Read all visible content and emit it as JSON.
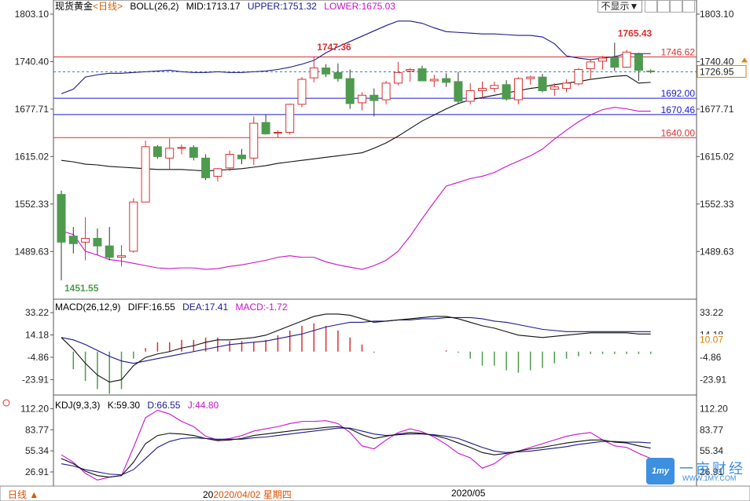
{
  "chart_data": {
    "type": "candlestick",
    "instrument": "现货黄金",
    "period": "日线",
    "x_labels": [
      {
        "text": "20",
        "highlight": "2020/04/02 星期四",
        "index": 13
      },
      {
        "text": "2020/05",
        "index": 35
      }
    ],
    "candles": [
      [
        1565,
        1570,
        1451.55,
        1502
      ],
      [
        1510,
        1522,
        1487,
        1500
      ],
      [
        1502,
        1535,
        1478,
        1507
      ],
      [
        1507,
        1520,
        1485,
        1497
      ],
      [
        1497,
        1522,
        1478,
        1482
      ],
      [
        1482,
        1498,
        1470,
        1484
      ],
      [
        1490,
        1560,
        1488,
        1555
      ],
      [
        1555,
        1636,
        1555,
        1628
      ],
      [
        1628,
        1630,
        1612,
        1615
      ],
      [
        1613,
        1639,
        1598,
        1626
      ],
      [
        1626,
        1631,
        1618,
        1627
      ],
      [
        1627,
        1630,
        1610,
        1614
      ],
      [
        1613,
        1618,
        1584,
        1587
      ],
      [
        1589,
        1600,
        1582,
        1599
      ],
      [
        1600,
        1623,
        1596,
        1618
      ],
      [
        1617,
        1625,
        1605,
        1612
      ],
      [
        1613,
        1668,
        1604,
        1659
      ],
      [
        1660,
        1670,
        1644,
        1645
      ],
      [
        1646,
        1650,
        1640,
        1647
      ],
      [
        1647,
        1685,
        1644,
        1684
      ],
      [
        1684,
        1720,
        1680,
        1717
      ],
      [
        1719,
        1747.36,
        1713,
        1732
      ],
      [
        1732,
        1737,
        1720,
        1724
      ],
      [
        1726,
        1738,
        1714,
        1718
      ],
      [
        1718,
        1730,
        1678,
        1685
      ],
      [
        1686,
        1700,
        1676,
        1696
      ],
      [
        1696,
        1705,
        1668,
        1689
      ],
      [
        1690,
        1715,
        1684,
        1712
      ],
      [
        1712,
        1740,
        1709,
        1726
      ],
      [
        1728,
        1732,
        1714,
        1730
      ],
      [
        1731,
        1735,
        1715,
        1715
      ],
      [
        1715,
        1723,
        1707,
        1717
      ],
      [
        1718,
        1725,
        1707,
        1713
      ],
      [
        1714,
        1727,
        1685,
        1688
      ],
      [
        1688,
        1712,
        1684,
        1702
      ],
      [
        1702,
        1714,
        1692,
        1705
      ],
      [
        1705,
        1714,
        1700,
        1709
      ],
      [
        1710,
        1716,
        1689,
        1691
      ],
      [
        1690,
        1720,
        1684,
        1718
      ],
      [
        1718,
        1722,
        1710,
        1720
      ],
      [
        1720,
        1724,
        1700,
        1702
      ],
      [
        1704,
        1712,
        1695,
        1707
      ],
      [
        1705,
        1717,
        1700,
        1712
      ],
      [
        1711,
        1732,
        1709,
        1730
      ],
      [
        1731,
        1743,
        1718,
        1740
      ],
      [
        1741,
        1748,
        1730,
        1745
      ],
      [
        1746,
        1765.43,
        1728,
        1733
      ],
      [
        1733,
        1756,
        1732,
        1753
      ],
      [
        1750,
        1752,
        1715,
        1729
      ],
      [
        1728,
        1730,
        1725,
        1727
      ]
    ],
    "boll": {
      "name": "BOLL(26,2)",
      "mid_label": "MID:1713.17",
      "upper_label": "UPPER:1751.32",
      "lower_label": "LOWER:1675.03",
      "mid": [
        1610,
        1608,
        1605,
        1604,
        1602,
        1601,
        1600,
        1599,
        1598,
        1598,
        1598,
        1597,
        1596,
        1597,
        1598,
        1599,
        1601,
        1603,
        1606,
        1608,
        1610,
        1612,
        1614,
        1616,
        1618,
        1620,
        1626,
        1633,
        1642,
        1652,
        1662,
        1670,
        1678,
        1685,
        1690,
        1693,
        1696,
        1699,
        1702,
        1705,
        1707,
        1710,
        1712,
        1714,
        1717,
        1719,
        1721,
        1722,
        1712,
        1713
      ],
      "upper": [
        1698,
        1704,
        1720,
        1723,
        1725,
        1725,
        1726,
        1727,
        1728,
        1729,
        1727,
        1726,
        1726,
        1727,
        1726,
        1726,
        1727,
        1728,
        1730,
        1733,
        1737,
        1742,
        1752,
        1760,
        1767,
        1774,
        1781,
        1788,
        1794,
        1794,
        1791,
        1785,
        1780,
        1779,
        1778,
        1777,
        1777,
        1776,
        1775,
        1775,
        1773,
        1764,
        1748,
        1745,
        1743,
        1745,
        1747,
        1751,
        1751,
        1751
      ],
      "lower": [
        1517,
        1512,
        1490,
        1485,
        1479,
        1477,
        1474,
        1471,
        1468,
        1467,
        1468,
        1468,
        1466,
        1467,
        1470,
        1472,
        1475,
        1478,
        1482,
        1484,
        1482,
        1482,
        1476,
        1472,
        1469,
        1466,
        1471,
        1478,
        1490,
        1510,
        1533,
        1555,
        1576,
        1581,
        1586,
        1589,
        1594,
        1602,
        1609,
        1616,
        1625,
        1638,
        1650,
        1661,
        1670,
        1677,
        1680,
        1678,
        1675,
        1675
      ]
    },
    "price_axis": {
      "ticks": [
        "1803.10",
        "1740.40",
        "1677.71",
        "1615.02",
        "1552.33",
        "1489.63"
      ],
      "ylim": [
        1451.55,
        1803.1
      ],
      "last_price": "1726.95"
    },
    "annotations": [
      {
        "text": "1747.36",
        "price": 1747.36,
        "index": 21
      },
      {
        "text": "1765.43",
        "price": 1765.43,
        "index": 46
      },
      {
        "text": "1451.55",
        "price": 1451.55,
        "index": 0
      }
    ],
    "levels": [
      {
        "price": 1746.62,
        "label": "1746.62",
        "color": "#d93030"
      },
      {
        "price": 1692.0,
        "label": "1692.00",
        "color": "#1a1ad0"
      },
      {
        "price": 1670.46,
        "label": "1670.46",
        "color": "#1a1ad0"
      },
      {
        "price": 1640.0,
        "label": "1640.00",
        "color": "#d93030"
      }
    ],
    "macd": {
      "name": "MACD(26,12,9)",
      "diff_label": "DIFF:16.55",
      "dea_label": "DEA:17.41",
      "macd_label": "MACD:-1.72",
      "ticks": [
        "33.22",
        "14.18",
        "-4.86",
        "-23.91"
      ],
      "ylim": [
        -35,
        38
      ],
      "last": "10.07",
      "diff": [
        12,
        2,
        -10,
        -20,
        -26,
        -24,
        -12,
        -5,
        -2,
        0,
        3,
        5,
        8,
        10,
        10,
        11,
        12,
        14,
        18,
        22,
        26,
        30,
        32,
        32,
        31,
        28,
        25,
        26,
        27,
        28,
        29,
        30,
        30,
        28,
        25,
        22,
        20,
        17,
        14,
        13,
        12,
        13,
        14,
        15,
        16,
        16,
        16,
        16,
        15,
        15
      ],
      "dea": [
        12,
        10,
        6,
        1,
        -4,
        -8,
        -10,
        -8,
        -6,
        -4,
        -2,
        0,
        2,
        4,
        6,
        7,
        8,
        9,
        11,
        13,
        15,
        18,
        21,
        23,
        25,
        25,
        26,
        26,
        27,
        27,
        28,
        28,
        29,
        29,
        29,
        28,
        26,
        25,
        23,
        21,
        19,
        18,
        17,
        17,
        17,
        17,
        17,
        17,
        17,
        17
      ],
      "hist": [
        0,
        -15,
        -25,
        -32,
        -36,
        -32,
        -6,
        3,
        8,
        8,
        10,
        10,
        12,
        12,
        9,
        9,
        8,
        10,
        14,
        18,
        22,
        24,
        22,
        18,
        12,
        6,
        -1,
        0,
        0,
        0,
        0,
        0,
        1,
        -1,
        -6,
        -12,
        -12,
        -16,
        -18,
        -16,
        -14,
        -10,
        -6,
        -4,
        -2,
        -2,
        -2,
        -2,
        -2,
        -2
      ]
    },
    "kdj": {
      "name": "KDJ(9,3,3)",
      "k_label": "K:59.30",
      "d_label": "D:66.55",
      "j_label": "J:44.80",
      "ticks": [
        "112.20",
        "83.77",
        "55.34",
        "26.91"
      ],
      "ylim": [
        10,
        120
      ],
      "k": [
        45,
        38,
        28,
        22,
        20,
        22,
        40,
        65,
        76,
        79,
        78,
        76,
        72,
        69,
        70,
        72,
        76,
        78,
        80,
        82,
        84,
        85,
        87,
        88,
        85,
        77,
        72,
        75,
        78,
        80,
        79,
        76,
        72,
        66,
        60,
        53,
        50,
        52,
        55,
        58,
        60,
        63,
        66,
        68,
        70,
        70,
        67,
        66,
        62,
        59
      ],
      "d": [
        38,
        35,
        30,
        27,
        24,
        23,
        30,
        45,
        60,
        68,
        72,
        73,
        72,
        71,
        71,
        71,
        73,
        74,
        76,
        78,
        80,
        82,
        84,
        86,
        86,
        82,
        78,
        76,
        77,
        78,
        78,
        77,
        75,
        72,
        66,
        60,
        55,
        53,
        54,
        55,
        57,
        59,
        61,
        64,
        66,
        68,
        68,
        67,
        67,
        66
      ],
      "j": [
        50,
        40,
        25,
        16,
        20,
        22,
        60,
        100,
        110,
        105,
        95,
        88,
        75,
        70,
        72,
        76,
        82,
        85,
        88,
        92,
        95,
        95,
        96,
        92,
        80,
        62,
        58,
        70,
        80,
        85,
        81,
        74,
        64,
        52,
        46,
        32,
        38,
        50,
        55,
        60,
        65,
        70,
        75,
        78,
        80,
        70,
        62,
        60,
        52,
        45
      ]
    }
  },
  "ui": {
    "selector": "不显示▼",
    "period_button": "日线 ▲",
    "logo_text": "1my",
    "watermark": "一亩财经",
    "watermark_url": "WWW.1MY.COM"
  },
  "colors": {
    "up": "#d93030",
    "down": "#4e9a4e",
    "mid": "#111111",
    "upper": "#1a1a8a",
    "lower": "#cc11cc",
    "diff": "#111111",
    "dea": "#1a1a8a"
  }
}
